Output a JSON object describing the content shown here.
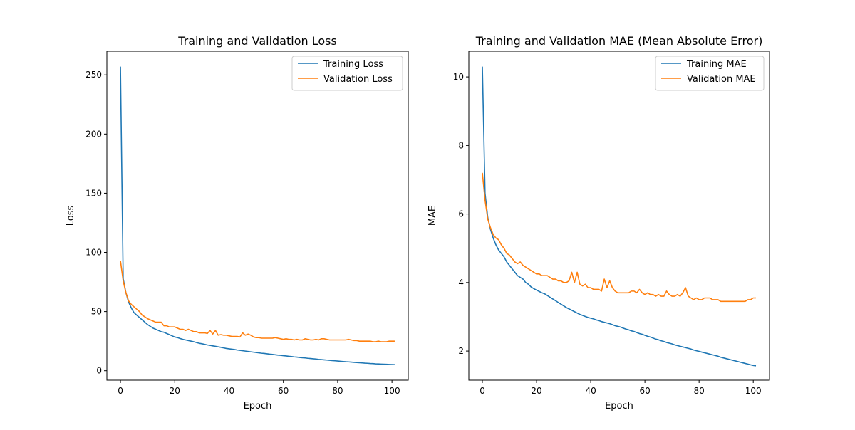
{
  "chart_data": [
    {
      "type": "line",
      "title": "Training and Validation Loss",
      "xlabel": "Epoch",
      "ylabel": "Loss",
      "xlim": [
        -5,
        106
      ],
      "ylim": [
        -8,
        270
      ],
      "xticks": [
        0,
        20,
        40,
        60,
        80,
        100
      ],
      "yticks": [
        0,
        50,
        100,
        150,
        200,
        250
      ],
      "grid": false,
      "legend": "top-right",
      "series": [
        {
          "name": "Training Loss",
          "color": "#1f77b4",
          "values": [
            257,
            78,
            66,
            58,
            53,
            49,
            47,
            45,
            43,
            41,
            39,
            37.5,
            36,
            35,
            34,
            33,
            32.5,
            31.5,
            30.5,
            29.5,
            28.5,
            28,
            27.2,
            26.5,
            26,
            25.5,
            25,
            24.5,
            23.8,
            23.2,
            22.8,
            22.3,
            21.8,
            21.4,
            21,
            20.6,
            20.2,
            19.8,
            19.3,
            18.8,
            18.5,
            18.2,
            17.9,
            17.5,
            17.2,
            16.9,
            16.6,
            16.3,
            16,
            15.7,
            15.4,
            15.1,
            14.8,
            14.6,
            14.3,
            14,
            13.8,
            13.5,
            13.2,
            13,
            12.7,
            12.5,
            12.2,
            12,
            11.7,
            11.5,
            11.2,
            11,
            10.8,
            10.5,
            10.3,
            10.1,
            9.9,
            9.6,
            9.4,
            9.2,
            9,
            8.8,
            8.6,
            8.4,
            8.2,
            8,
            7.8,
            7.6,
            7.5,
            7.3,
            7.1,
            6.9,
            6.8,
            6.6,
            6.4,
            6.3,
            6.1,
            6,
            5.8,
            5.7,
            5.6,
            5.5,
            5.4,
            5.3,
            5.2,
            5.1
          ]
        },
        {
          "name": "Validation Loss",
          "color": "#ff7f0e",
          "values": [
            93,
            76,
            66,
            59,
            56,
            54,
            52,
            50,
            47,
            45.5,
            44,
            43,
            42,
            41,
            41,
            41,
            38,
            38,
            37,
            37,
            37,
            36,
            35,
            35,
            34,
            35,
            34,
            33,
            33,
            32,
            32,
            32,
            31.5,
            34,
            31,
            34,
            30,
            30.5,
            30,
            30,
            29.5,
            29,
            29,
            29,
            28.5,
            32,
            30,
            31,
            30,
            28.5,
            28,
            28,
            27.5,
            27.5,
            27.5,
            27.5,
            27.5,
            28,
            27.5,
            27,
            26.5,
            27,
            26.5,
            26.5,
            26,
            26.5,
            26,
            26,
            27,
            26.5,
            26,
            26,
            26.5,
            26,
            27,
            27,
            26.5,
            26,
            26,
            26,
            26,
            26,
            26,
            26,
            26.5,
            26,
            25.5,
            25.5,
            25,
            25,
            25,
            25,
            25,
            24.5,
            24.5,
            25,
            24.5,
            24.5,
            24.5,
            25,
            25,
            25
          ]
        }
      ]
    },
    {
      "type": "line",
      "title": "Training and Validation MAE (Mean Absolute Error)",
      "xlabel": "Epoch",
      "ylabel": "MAE",
      "xlim": [
        -5,
        106
      ],
      "ylim": [
        1.15,
        10.75
      ],
      "xticks": [
        0,
        20,
        40,
        60,
        80,
        100
      ],
      "yticks": [
        2,
        4,
        6,
        8,
        10
      ],
      "grid": false,
      "legend": "top-right",
      "series": [
        {
          "name": "Training MAE",
          "color": "#1f77b4",
          "values": [
            10.3,
            6.6,
            5.9,
            5.55,
            5.3,
            5.1,
            4.95,
            4.85,
            4.75,
            4.6,
            4.5,
            4.4,
            4.3,
            4.2,
            4.15,
            4.1,
            4.0,
            3.95,
            3.87,
            3.82,
            3.78,
            3.74,
            3.7,
            3.67,
            3.62,
            3.57,
            3.52,
            3.47,
            3.42,
            3.37,
            3.32,
            3.27,
            3.23,
            3.19,
            3.15,
            3.11,
            3.07,
            3.04,
            3.01,
            2.98,
            2.96,
            2.94,
            2.91,
            2.89,
            2.86,
            2.84,
            2.82,
            2.8,
            2.77,
            2.74,
            2.72,
            2.7,
            2.67,
            2.64,
            2.62,
            2.59,
            2.57,
            2.54,
            2.51,
            2.49,
            2.46,
            2.43,
            2.41,
            2.38,
            2.35,
            2.33,
            2.3,
            2.28,
            2.25,
            2.23,
            2.21,
            2.18,
            2.16,
            2.14,
            2.12,
            2.1,
            2.08,
            2.06,
            2.03,
            2.01,
            1.99,
            1.97,
            1.95,
            1.93,
            1.91,
            1.89,
            1.87,
            1.85,
            1.82,
            1.8,
            1.78,
            1.76,
            1.74,
            1.72,
            1.7,
            1.68,
            1.66,
            1.64,
            1.62,
            1.6,
            1.58,
            1.57
          ]
        },
        {
          "name": "Validation MAE",
          "color": "#ff7f0e",
          "values": [
            7.2,
            6.4,
            5.85,
            5.6,
            5.4,
            5.3,
            5.25,
            5.1,
            5.0,
            4.85,
            4.8,
            4.7,
            4.6,
            4.55,
            4.6,
            4.5,
            4.45,
            4.4,
            4.35,
            4.3,
            4.25,
            4.25,
            4.2,
            4.2,
            4.2,
            4.15,
            4.1,
            4.1,
            4.05,
            4.05,
            4.0,
            4.0,
            4.05,
            4.3,
            4.0,
            4.3,
            3.95,
            3.9,
            3.95,
            3.85,
            3.85,
            3.8,
            3.8,
            3.8,
            3.75,
            4.1,
            3.85,
            4.05,
            3.85,
            3.75,
            3.7,
            3.7,
            3.7,
            3.7,
            3.7,
            3.75,
            3.75,
            3.7,
            3.8,
            3.7,
            3.65,
            3.7,
            3.65,
            3.65,
            3.6,
            3.65,
            3.6,
            3.6,
            3.75,
            3.65,
            3.6,
            3.6,
            3.65,
            3.6,
            3.7,
            3.85,
            3.6,
            3.55,
            3.5,
            3.55,
            3.5,
            3.5,
            3.55,
            3.55,
            3.55,
            3.5,
            3.5,
            3.5,
            3.45,
            3.45,
            3.45,
            3.45,
            3.45,
            3.45,
            3.45,
            3.45,
            3.45,
            3.45,
            3.5,
            3.5,
            3.55,
            3.55
          ]
        }
      ]
    }
  ]
}
